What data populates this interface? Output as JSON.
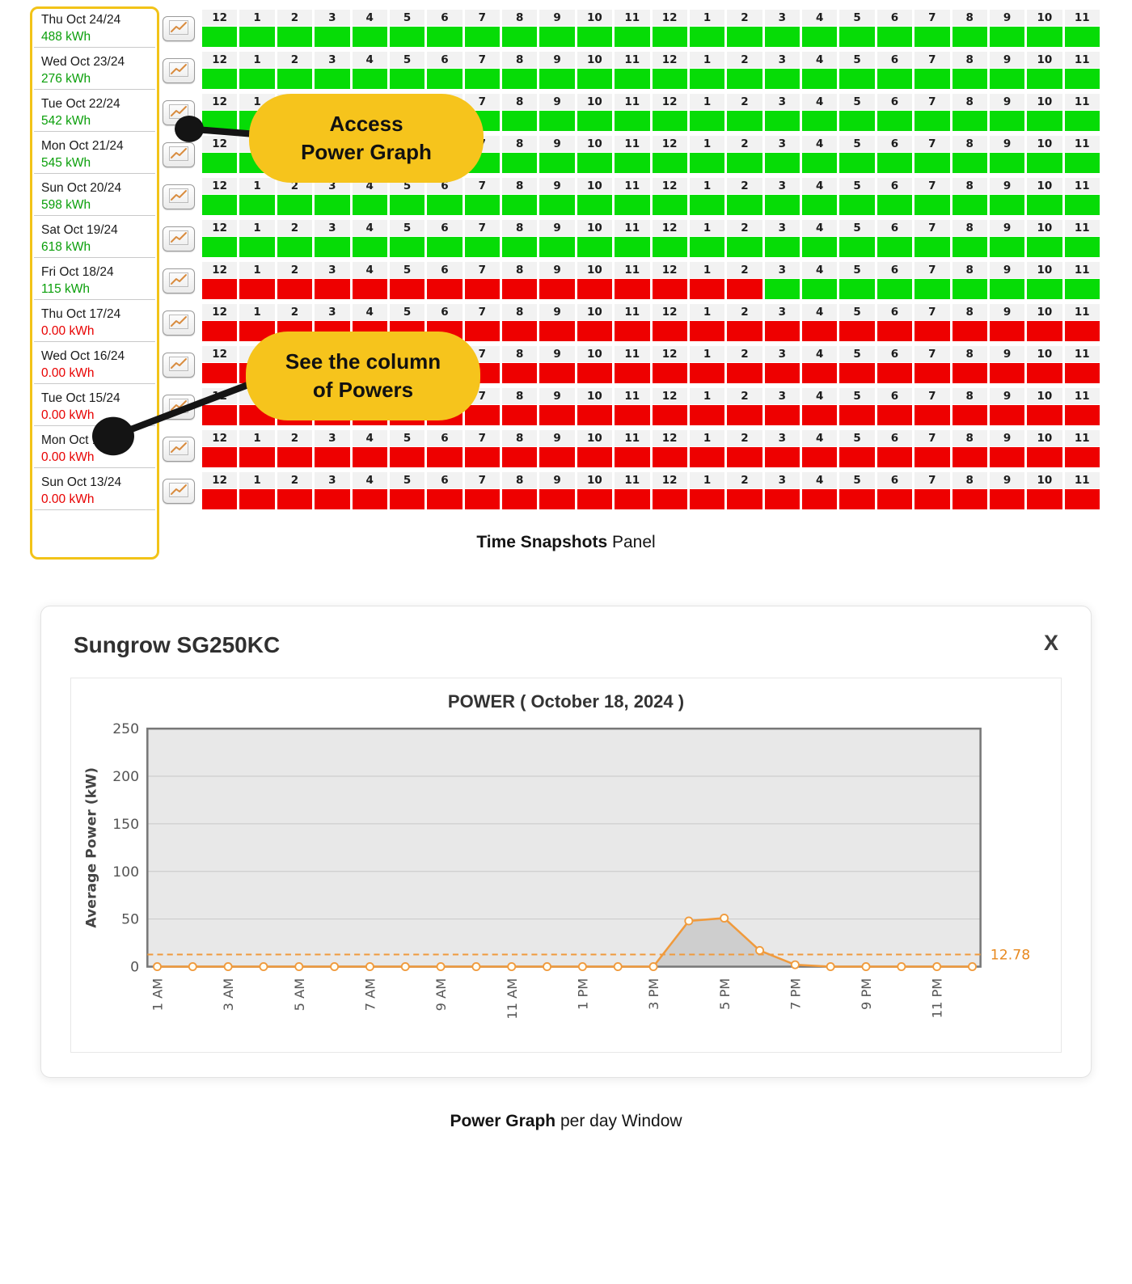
{
  "colors": {
    "ok_cell": "#06dc06",
    "down_cell": "#ee0000",
    "ok_text": "#0a9f0a",
    "down_text": "#e80000",
    "callout_bg": "#f6c41c",
    "series": "#f09a3c",
    "avg_label": "#e8891f",
    "plot_bg": "#e8e8e8"
  },
  "panel": {
    "hour_labels": [
      "12",
      "1",
      "2",
      "3",
      "4",
      "5",
      "6",
      "7",
      "8",
      "9",
      "10",
      "11",
      "12",
      "1",
      "2",
      "3",
      "4",
      "5",
      "6",
      "7",
      "8",
      "9",
      "10",
      "11"
    ],
    "rows": [
      {
        "date": "Thu Oct 24/24",
        "energy": "488 kWh",
        "status": "ok",
        "cells": "GGGGGGGGGGGGGGGGGGGGGGGG"
      },
      {
        "date": "Wed Oct 23/24",
        "energy": "276 kWh",
        "status": "ok",
        "cells": "GGGGGGGGGGGGGGGGGGGGGGGG"
      },
      {
        "date": "Tue Oct 22/24",
        "energy": "542 kWh",
        "status": "ok",
        "cells": "GGGGGGGGGGGGGGGGGGGGGGGG"
      },
      {
        "date": "Mon Oct 21/24",
        "energy": "545 kWh",
        "status": "ok",
        "cells": "GGGGGGGGGGGGGGGGGGGGGGGG"
      },
      {
        "date": "Sun Oct 20/24",
        "energy": "598 kWh",
        "status": "ok",
        "cells": "GGGGGGGGGGGGGGGGGGGGGGGG"
      },
      {
        "date": "Sat Oct 19/24",
        "energy": "618 kWh",
        "status": "ok",
        "cells": "GGGGGGGGGGGGGGGGGGGGGGGG"
      },
      {
        "date": "Fri Oct 18/24",
        "energy": "115 kWh",
        "status": "ok",
        "cells": "RRRRRRRRRRRRRRRGGGGGGGGG"
      },
      {
        "date": "Thu Oct 17/24",
        "energy": "0.00 kWh",
        "status": "down",
        "cells": "RRRRRRRRRRRRRRRRRRRRRRRR"
      },
      {
        "date": "Wed Oct 16/24",
        "energy": "0.00 kWh",
        "status": "down",
        "cells": "RRRRRRRRRRRRRRRRRRRRRRRR"
      },
      {
        "date": "Tue Oct 15/24",
        "energy": "0.00 kWh",
        "status": "down",
        "cells": "RRRRRRRRRRRRRRRRRRRRRRRR"
      },
      {
        "date": "Mon Oct 14/24",
        "energy": "0.00 kWh",
        "status": "down",
        "cells": "RRRRRRRRRRRRRRRRRRRRRRRR"
      },
      {
        "date": "Sun Oct 13/24",
        "energy": "0.00 kWh",
        "status": "down",
        "cells": "RRRRRRRRRRRRRRRRRRRRRRRR"
      }
    ],
    "caption": {
      "bold": "Time Snapshots",
      "rest": " Panel"
    }
  },
  "callouts": {
    "access": {
      "line1": "Access",
      "line2": "Power Graph"
    },
    "column": {
      "line1": "See the column",
      "line2": "of Powers"
    }
  },
  "power_window": {
    "title": "Sungrow SG250KC",
    "close_label": "X",
    "caption": {
      "bold": "Power Graph",
      "rest": " per day Window"
    }
  },
  "chart_data": {
    "type": "line",
    "title": "POWER ( October 18, 2024 )",
    "ylabel": "Average Power (kW)",
    "ylim": [
      0,
      250
    ],
    "yticks": [
      0,
      50,
      100,
      150,
      200,
      250
    ],
    "x_hours": [
      1,
      2,
      3,
      4,
      5,
      6,
      7,
      8,
      9,
      10,
      11,
      12,
      13,
      14,
      15,
      16,
      17,
      18,
      19,
      20,
      21,
      22,
      23,
      24
    ],
    "values": [
      0,
      0,
      0,
      0,
      0,
      0,
      0,
      0,
      0,
      0,
      0,
      0,
      0,
      0,
      0,
      48,
      51,
      17,
      2,
      0,
      0,
      0,
      0,
      0
    ],
    "x_tick_hours": [
      1,
      3,
      5,
      7,
      9,
      11,
      13,
      15,
      17,
      19,
      21,
      23
    ],
    "x_tick_labels": [
      "1 AM",
      "3 AM",
      "5 AM",
      "7 AM",
      "9 AM",
      "11 AM",
      "1 PM",
      "3 PM",
      "5 PM",
      "7 PM",
      "9 PM",
      "11 PM"
    ],
    "average_line": {
      "value": 12.78,
      "label": "12.78"
    },
    "grid": true,
    "legend": "none"
  }
}
